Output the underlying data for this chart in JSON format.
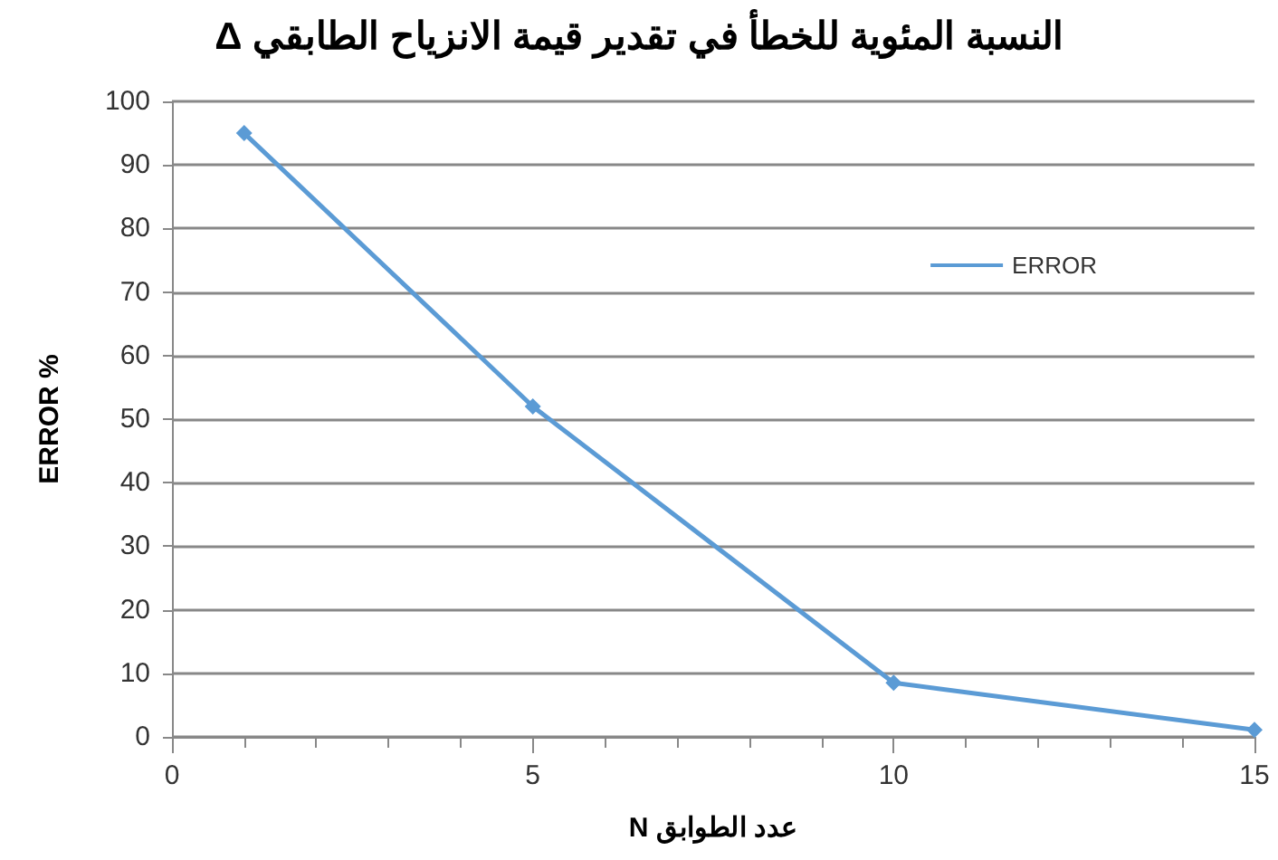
{
  "chart_data": {
    "type": "line",
    "title": "النسبة المئوية للخطأ في تقدير قيمة الانزياح الطابقي  Δ",
    "xlabel": "عدد الطوابق N",
    "ylabel": "ERROR %",
    "x": [
      1,
      5,
      10,
      15
    ],
    "series": [
      {
        "name": "ERROR",
        "color": "#5b9bd5",
        "values": [
          95,
          52,
          8.5,
          1.1
        ]
      }
    ],
    "xlim": [
      0,
      15
    ],
    "xticks": [
      0,
      5,
      10,
      15
    ],
    "ylim": [
      0,
      100
    ],
    "yticks": [
      0,
      10,
      20,
      30,
      40,
      50,
      60,
      70,
      80,
      90,
      100
    ],
    "grid": "y",
    "legend": "right",
    "marker": "diamond",
    "line_style": "solid"
  }
}
